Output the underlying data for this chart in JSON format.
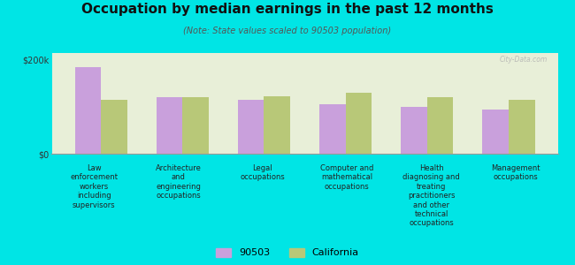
{
  "title": "Occupation by median earnings in the past 12 months",
  "subtitle": "(Note: State values scaled to 90503 population)",
  "background_color": "#00e5e5",
  "plot_bg_color": "#e8efd8",
  "categories": [
    "Law\nenforcement\nworkers\nincluding\nsupervisors",
    "Architecture\nand\nengineering\noccupations",
    "Legal\noccupations",
    "Computer and\nmathematical\noccupations",
    "Health\ndiagnosing and\ntreating\npractitioners\nand other\ntechnical\noccupations",
    "Management\noccupations"
  ],
  "values_90503": [
    185000,
    120000,
    115000,
    105000,
    100000,
    95000
  ],
  "values_california": [
    115000,
    120000,
    122000,
    130000,
    120000,
    115000
  ],
  "color_90503": "#c9a0dc",
  "color_california": "#b8c878",
  "yticks": [
    0,
    200000
  ],
  "ytick_labels": [
    "$0",
    "$200k"
  ],
  "ylim": [
    0,
    215000
  ],
  "legend_labels": [
    "90503",
    "California"
  ],
  "watermark": "City-Data.com",
  "title_fontsize": 11,
  "subtitle_fontsize": 7,
  "tick_label_fontsize": 6,
  "ytick_fontsize": 7
}
